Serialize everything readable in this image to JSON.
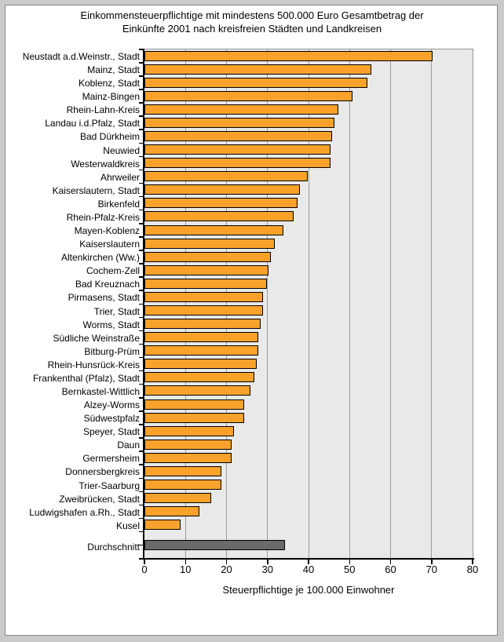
{
  "chart_data": {
    "type": "bar",
    "orientation": "horizontal",
    "title": "Einkommensteuerpflichtige mit mindestens 500.000 Euro Gesamtbetrag der Einkünfte 2001 nach kreisfreien Städten und Landkreisen",
    "title_line1": "Einkommensteuerpflichtige mit mindestens 500.000 Euro Gesamtbetrag der",
    "title_line2": "Einkünfte 2001 nach kreisfreien Städten und Landkreisen",
    "xlabel": "Steuerpflichtige je 100.000 Einwohner",
    "xlim": [
      0,
      80
    ],
    "xticks": [
      0,
      10,
      20,
      30,
      40,
      50,
      60,
      70,
      80
    ],
    "grid": "vertical-major",
    "legend": "none",
    "categories": [
      "Neustadt a.d.Weinstr., Stadt",
      "Mainz, Stadt",
      "Koblenz, Stadt",
      "Mainz-Bingen",
      "Rhein-Lahn-Kreis",
      "Landau i.d.Pfalz, Stadt",
      "Bad Dürkheim",
      "Neuwied",
      "Westerwaldkreis",
      "Ahrweiler",
      "Kaiserslautern, Stadt",
      "Birkenfeld",
      "Rhein-Pfalz-Kreis",
      "Mayen-Koblenz",
      "Kaiserslautern",
      "Altenkirchen (Ww.)",
      "Cochem-Zell",
      "Bad Kreuznach",
      "Pirmasens, Stadt",
      "Trier, Stadt",
      "Worms, Stadt",
      "Südliche Weinstraße",
      "Bitburg-Prüm",
      "Rhein-Hunsrück-Kreis",
      "Frankenthal (Pfalz), Stadt",
      "Bernkastel-Wittlich",
      "Alzey-Worms",
      "Südwestpfalz",
      "Speyer, Stadt",
      "Daun",
      "Germersheim",
      "Donnersbergkreis",
      "Trier-Saarburg",
      "Zweibrücken, Stadt",
      "Ludwigshafen a.Rh., Stadt",
      "Kusel"
    ],
    "values": [
      70.5,
      55.5,
      54.5,
      51,
      47.5,
      46.5,
      46,
      45.5,
      45.5,
      40,
      38,
      37.5,
      36.5,
      34,
      32,
      31,
      30.5,
      30,
      29,
      29,
      28.5,
      28,
      28,
      27.5,
      27,
      26,
      24.5,
      24.5,
      22,
      21.5,
      21.5,
      19,
      19,
      16.5,
      13.5,
      9
    ],
    "average": {
      "label": "Durchschnitt",
      "value": 34.5
    },
    "colors": {
      "bar": "#f9a22b",
      "bar_border": "#000000",
      "average_bar": "#6a6a6a",
      "plot_background": "#e9e9e9",
      "gridline": "#9c9c9c",
      "frame_background": "#cacaca",
      "chart_background": "#ffffff"
    }
  }
}
